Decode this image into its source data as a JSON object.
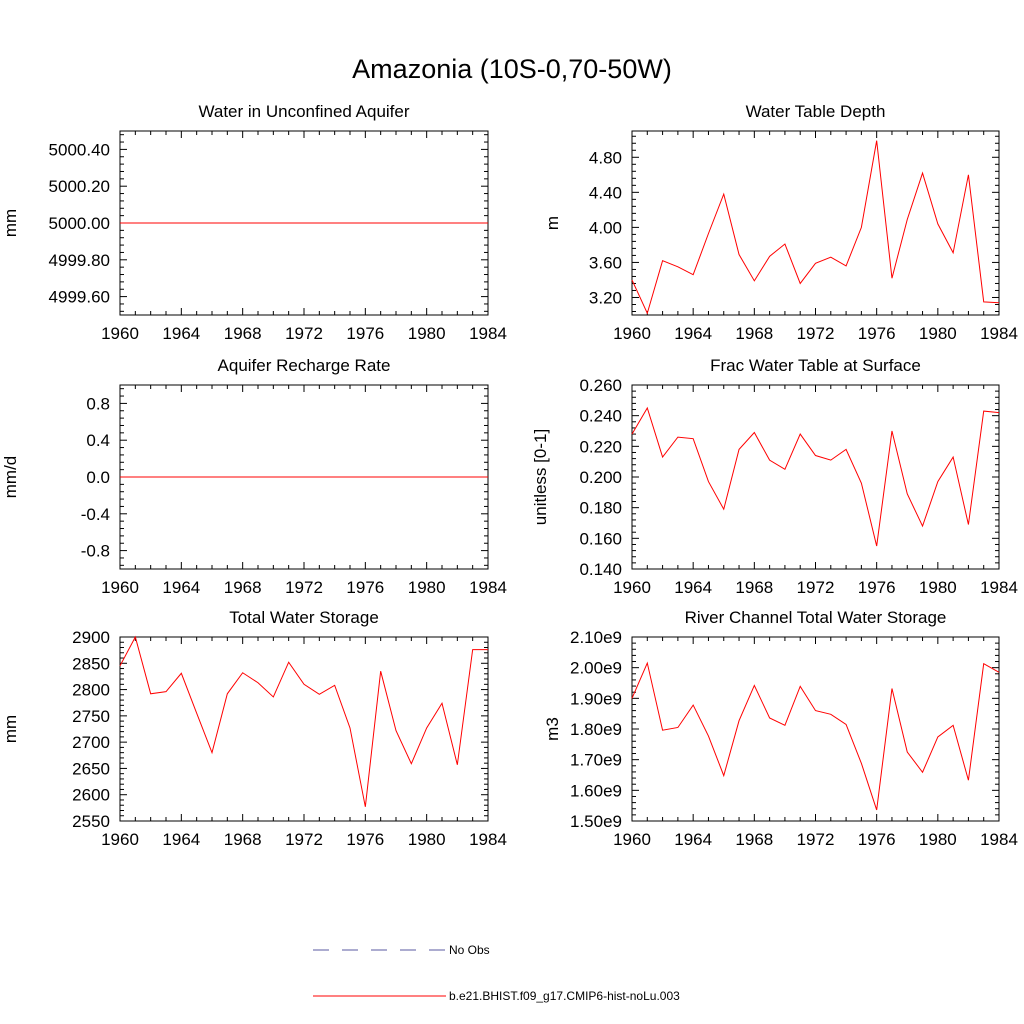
{
  "figure": {
    "title": "Amazonia (10S-0,70-50W)"
  },
  "legend": {
    "entries": [
      {
        "label": "No Obs",
        "color": "#5a5aa0",
        "style": "dashed"
      },
      {
        "label": "b.e21.BHIST.f09_g17.CMIP6-hist-noLu.003",
        "color": "#ff0000",
        "style": "solid"
      }
    ]
  },
  "chart_data": [
    {
      "type": "line",
      "title": "Water in Unconfined Aquifer",
      "ylabel": "mm",
      "xlim": [
        1960,
        1984
      ],
      "ylim": [
        4999.5,
        5000.5
      ],
      "xticks": [
        1960,
        1964,
        1968,
        1972,
        1976,
        1980,
        1984
      ],
      "xtick_labels": [
        "1960",
        "1964",
        "1968",
        "1972",
        "1976",
        "1980",
        "1984"
      ],
      "yticks": [
        4999.6,
        4999.8,
        5000.0,
        5000.2,
        5000.4
      ],
      "ytick_labels": [
        "4999.60",
        "4999.80",
        "5000.00",
        "5000.20",
        "5000.40"
      ],
      "series": [
        {
          "color": "#ff0000",
          "x": [
            1960,
            1961,
            1962,
            1963,
            1964,
            1965,
            1966,
            1967,
            1968,
            1969,
            1970,
            1971,
            1972,
            1973,
            1974,
            1975,
            1976,
            1977,
            1978,
            1979,
            1980,
            1981,
            1982,
            1983,
            1984
          ],
          "values": [
            5000,
            5000,
            5000,
            5000,
            5000,
            5000,
            5000,
            5000,
            5000,
            5000,
            5000,
            5000,
            5000,
            5000,
            5000,
            5000,
            5000,
            5000,
            5000,
            5000,
            5000,
            5000,
            5000,
            5000,
            5000
          ]
        }
      ]
    },
    {
      "type": "line",
      "title": "Water Table Depth",
      "ylabel": "m",
      "xlim": [
        1960,
        1984
      ],
      "ylim": [
        3.0,
        5.1
      ],
      "xticks": [
        1960,
        1964,
        1968,
        1972,
        1976,
        1980,
        1984
      ],
      "xtick_labels": [
        "1960",
        "1964",
        "1968",
        "1972",
        "1976",
        "1980",
        "1984"
      ],
      "yticks": [
        3.2,
        3.6,
        4.0,
        4.4,
        4.8
      ],
      "ytick_labels": [
        "3.20",
        "3.60",
        "4.00",
        "4.40",
        "4.80"
      ],
      "series": [
        {
          "color": "#ff0000",
          "x": [
            1960,
            1961,
            1962,
            1963,
            1964,
            1965,
            1966,
            1967,
            1968,
            1969,
            1970,
            1971,
            1972,
            1973,
            1974,
            1975,
            1976,
            1977,
            1978,
            1979,
            1980,
            1981,
            1982,
            1983,
            1984
          ],
          "values": [
            3.4,
            3.02,
            3.62,
            3.55,
            3.46,
            3.93,
            4.38,
            3.69,
            3.39,
            3.67,
            3.81,
            3.36,
            3.59,
            3.66,
            3.56,
            4.0,
            4.99,
            3.42,
            4.09,
            4.62,
            4.04,
            3.71,
            4.6,
            3.15,
            3.14
          ]
        }
      ]
    },
    {
      "type": "line",
      "title": "Aquifer Recharge Rate",
      "ylabel": "mm/d",
      "xlim": [
        1960,
        1984
      ],
      "ylim": [
        -1.0,
        1.0
      ],
      "xticks": [
        1960,
        1964,
        1968,
        1972,
        1976,
        1980,
        1984
      ],
      "xtick_labels": [
        "1960",
        "1964",
        "1968",
        "1972",
        "1976",
        "1980",
        "1984"
      ],
      "yticks": [
        -0.8,
        -0.4,
        0.0,
        0.4,
        0.8
      ],
      "ytick_labels": [
        "-0.8",
        "-0.4",
        "0.0",
        "0.4",
        "0.8"
      ],
      "series": [
        {
          "color": "#ff0000",
          "x": [
            1960,
            1961,
            1962,
            1963,
            1964,
            1965,
            1966,
            1967,
            1968,
            1969,
            1970,
            1971,
            1972,
            1973,
            1974,
            1975,
            1976,
            1977,
            1978,
            1979,
            1980,
            1981,
            1982,
            1983,
            1984
          ],
          "values": [
            0,
            0,
            0,
            0,
            0,
            0,
            0,
            0,
            0,
            0,
            0,
            0,
            0,
            0,
            0,
            0,
            0,
            0,
            0,
            0,
            0,
            0,
            0,
            0,
            0
          ]
        }
      ]
    },
    {
      "type": "line",
      "title": "Frac Water Table at Surface",
      "ylabel": "unitless [0-1]",
      "xlim": [
        1960,
        1984
      ],
      "ylim": [
        0.14,
        0.26
      ],
      "xticks": [
        1960,
        1964,
        1968,
        1972,
        1976,
        1980,
        1984
      ],
      "xtick_labels": [
        "1960",
        "1964",
        "1968",
        "1972",
        "1976",
        "1980",
        "1984"
      ],
      "yticks": [
        0.14,
        0.16,
        0.18,
        0.2,
        0.22,
        0.24,
        0.26
      ],
      "ytick_labels": [
        "0.140",
        "0.160",
        "0.180",
        "0.200",
        "0.220",
        "0.240",
        "0.260"
      ],
      "series": [
        {
          "color": "#ff0000",
          "x": [
            1960,
            1961,
            1962,
            1963,
            1964,
            1965,
            1966,
            1967,
            1968,
            1969,
            1970,
            1971,
            1972,
            1973,
            1974,
            1975,
            1976,
            1977,
            1978,
            1979,
            1980,
            1981,
            1982,
            1983,
            1984
          ],
          "values": [
            0.228,
            0.245,
            0.213,
            0.226,
            0.225,
            0.197,
            0.179,
            0.218,
            0.229,
            0.211,
            0.205,
            0.228,
            0.214,
            0.211,
            0.218,
            0.196,
            0.155,
            0.23,
            0.189,
            0.168,
            0.197,
            0.213,
            0.169,
            0.243,
            0.242
          ]
        }
      ]
    },
    {
      "type": "line",
      "title": "Total Water Storage",
      "ylabel": "mm",
      "xlim": [
        1960,
        1984
      ],
      "ylim": [
        2550,
        2900
      ],
      "xticks": [
        1960,
        1964,
        1968,
        1972,
        1976,
        1980,
        1984
      ],
      "xtick_labels": [
        "1960",
        "1964",
        "1968",
        "1972",
        "1976",
        "1980",
        "1984"
      ],
      "yticks": [
        2550,
        2600,
        2650,
        2700,
        2750,
        2800,
        2850,
        2900
      ],
      "ytick_labels": [
        "2550",
        "2600",
        "2650",
        "2700",
        "2750",
        "2800",
        "2850",
        "2900"
      ],
      "series": [
        {
          "color": "#ff0000",
          "x": [
            1960,
            1961,
            1962,
            1963,
            1964,
            1965,
            1966,
            1967,
            1968,
            1969,
            1970,
            1971,
            1972,
            1973,
            1974,
            1975,
            1976,
            1977,
            1978,
            1979,
            1980,
            1981,
            1982,
            1983,
            1984
          ],
          "values": [
            2845,
            2900,
            2792,
            2796,
            2831,
            2755,
            2680,
            2792,
            2832,
            2813,
            2786,
            2852,
            2810,
            2791,
            2808,
            2727,
            2577,
            2835,
            2722,
            2659,
            2727,
            2774,
            2657,
            2876,
            2876
          ]
        }
      ]
    },
    {
      "type": "line",
      "title": "River Channel Total Water Storage",
      "ylabel": "m3",
      "xlim": [
        1960,
        1984
      ],
      "ylim": [
        1500000000.0,
        2100000000.0
      ],
      "xticks": [
        1960,
        1964,
        1968,
        1972,
        1976,
        1980,
        1984
      ],
      "xtick_labels": [
        "1960",
        "1964",
        "1968",
        "1972",
        "1976",
        "1980",
        "1984"
      ],
      "yticks": [
        1500000000.0,
        1600000000.0,
        1700000000.0,
        1800000000.0,
        1900000000.0,
        2000000000.0,
        2100000000.0
      ],
      "ytick_labels": [
        "1.50e9",
        "1.60e9",
        "1.70e9",
        "1.80e9",
        "1.90e9",
        "2.00e9",
        "2.10e9"
      ],
      "series": [
        {
          "color": "#ff0000",
          "x": [
            1960,
            1961,
            1962,
            1963,
            1964,
            1965,
            1966,
            1967,
            1968,
            1969,
            1970,
            1971,
            1972,
            1973,
            1974,
            1975,
            1976,
            1977,
            1978,
            1979,
            1980,
            1981,
            1982,
            1983,
            1984
          ],
          "values": [
            1900000000.0,
            2015000000.0,
            1796000000.0,
            1805000000.0,
            1878000000.0,
            1777000000.0,
            1648000000.0,
            1827000000.0,
            1942000000.0,
            1836000000.0,
            1812000000.0,
            1939000000.0,
            1860000000.0,
            1848000000.0,
            1815000000.0,
            1688000000.0,
            1536000000.0,
            1932000000.0,
            1725000000.0,
            1659000000.0,
            1774000000.0,
            1812000000.0,
            1633000000.0,
            2013000000.0,
            1985000000.0
          ]
        }
      ]
    }
  ]
}
